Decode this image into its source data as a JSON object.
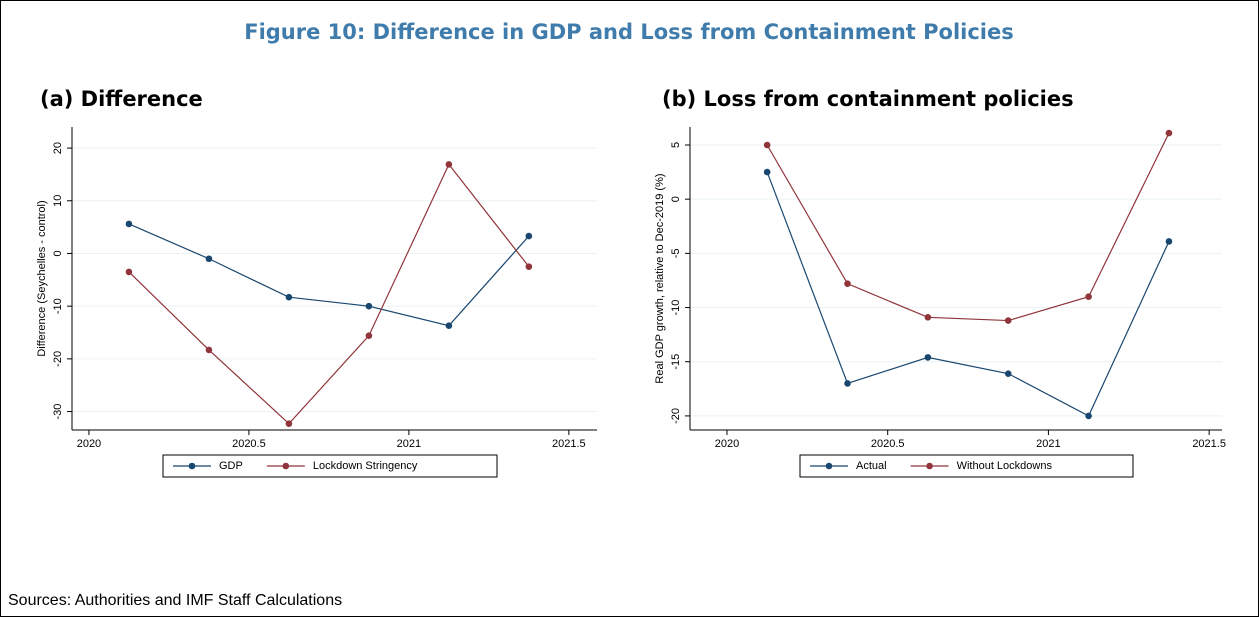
{
  "title": "Figure 10: Difference in GDP and Loss from Containment Policies",
  "source": "Sources: Authorities and IMF Staff Calculations",
  "chart_data": [
    {
      "type": "line",
      "title": "(a) Difference",
      "ylabel": "Difference (Seychelles - control)",
      "x": [
        2020.125,
        2020.375,
        2020.625,
        2020.875,
        2021.125,
        2021.375
      ],
      "series": [
        {
          "name": "GDP",
          "color": "#1a476f",
          "values": [
            5.6,
            -1,
            -8.3,
            -10,
            -13.7,
            3.3
          ]
        },
        {
          "name": "Lockdown Stringency",
          "color": "#90353b",
          "values": [
            -3.5,
            -18.3,
            -32.3,
            -15.6,
            16.9,
            -2.5
          ]
        }
      ],
      "xlim": [
        2019.947,
        2021.588
      ],
      "ylim": [
        -33.5,
        24
      ],
      "xticks": [
        2020,
        2020.5,
        2021,
        2021.5
      ],
      "yticks": [
        -30,
        -20,
        -10,
        0,
        10,
        20
      ],
      "grid": true
    },
    {
      "type": "line",
      "title": "(b) Loss from containment policies",
      "ylabel": "Real GDP growth, relative to Dec-2019 (%)",
      "x": [
        2020.125,
        2020.375,
        2020.625,
        2020.875,
        2021.125,
        2021.375
      ],
      "series": [
        {
          "name": "Actual",
          "color": "#1a476f",
          "values": [
            2.5,
            -17,
            -14.6,
            -16.1,
            -20,
            -3.9
          ]
        },
        {
          "name": "Without Lockdowns",
          "color": "#90353b",
          "values": [
            5,
            -7.8,
            -10.9,
            -11.2,
            -9,
            6.1
          ]
        }
      ],
      "xlim": [
        2019.885,
        2021.54
      ],
      "ylim": [
        -21.3,
        6.66
      ],
      "xticks": [
        2020,
        2020.5,
        2021,
        2021.5
      ],
      "yticks": [
        -20,
        -15,
        -10,
        -5,
        0,
        5
      ],
      "grid": true
    }
  ]
}
